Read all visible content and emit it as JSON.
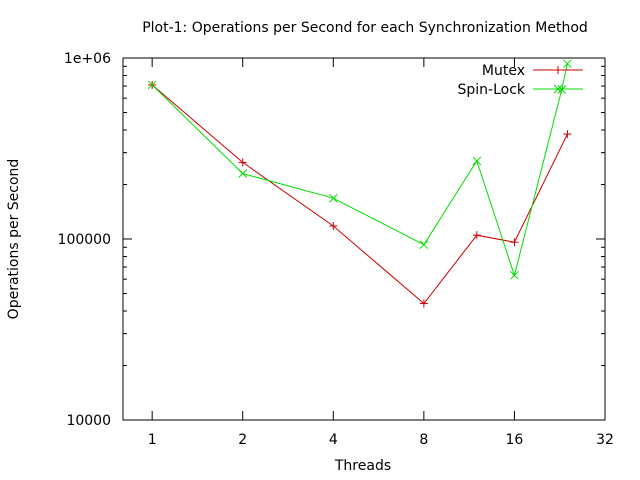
{
  "chart_data": {
    "type": "line",
    "title": "Plot-1: Operations per Second for each Synchronization Method",
    "xlabel": "Threads",
    "ylabel": "Operations per Second",
    "x_scale": "log2",
    "y_scale": "log10",
    "xlim": [
      0.8,
      32
    ],
    "ylim": [
      10000,
      1000000
    ],
    "x_ticks": [
      1,
      2,
      4,
      8,
      16,
      32
    ],
    "x_tick_labels": [
      "1",
      "2",
      "4",
      "8",
      "16",
      "32"
    ],
    "y_ticks": [
      10000,
      100000,
      1000000
    ],
    "y_tick_labels": [
      "10000",
      "100000",
      "1e+06"
    ],
    "legend_position": "top-right",
    "grid": false,
    "series": [
      {
        "name": "Mutex",
        "color": "#cc0000",
        "marker": "plus",
        "x": [
          1,
          2,
          4,
          8,
          12,
          16,
          24
        ],
        "y": [
          710000,
          265000,
          118000,
          44000,
          105000,
          96000,
          380000
        ]
      },
      {
        "name": "Spin-Lock",
        "color": "#00dd00",
        "marker": "cross",
        "x": [
          1,
          2,
          4,
          8,
          12,
          16,
          23,
          24
        ],
        "y": [
          710000,
          230000,
          168000,
          93000,
          270000,
          63000,
          670000,
          930000
        ]
      }
    ]
  }
}
